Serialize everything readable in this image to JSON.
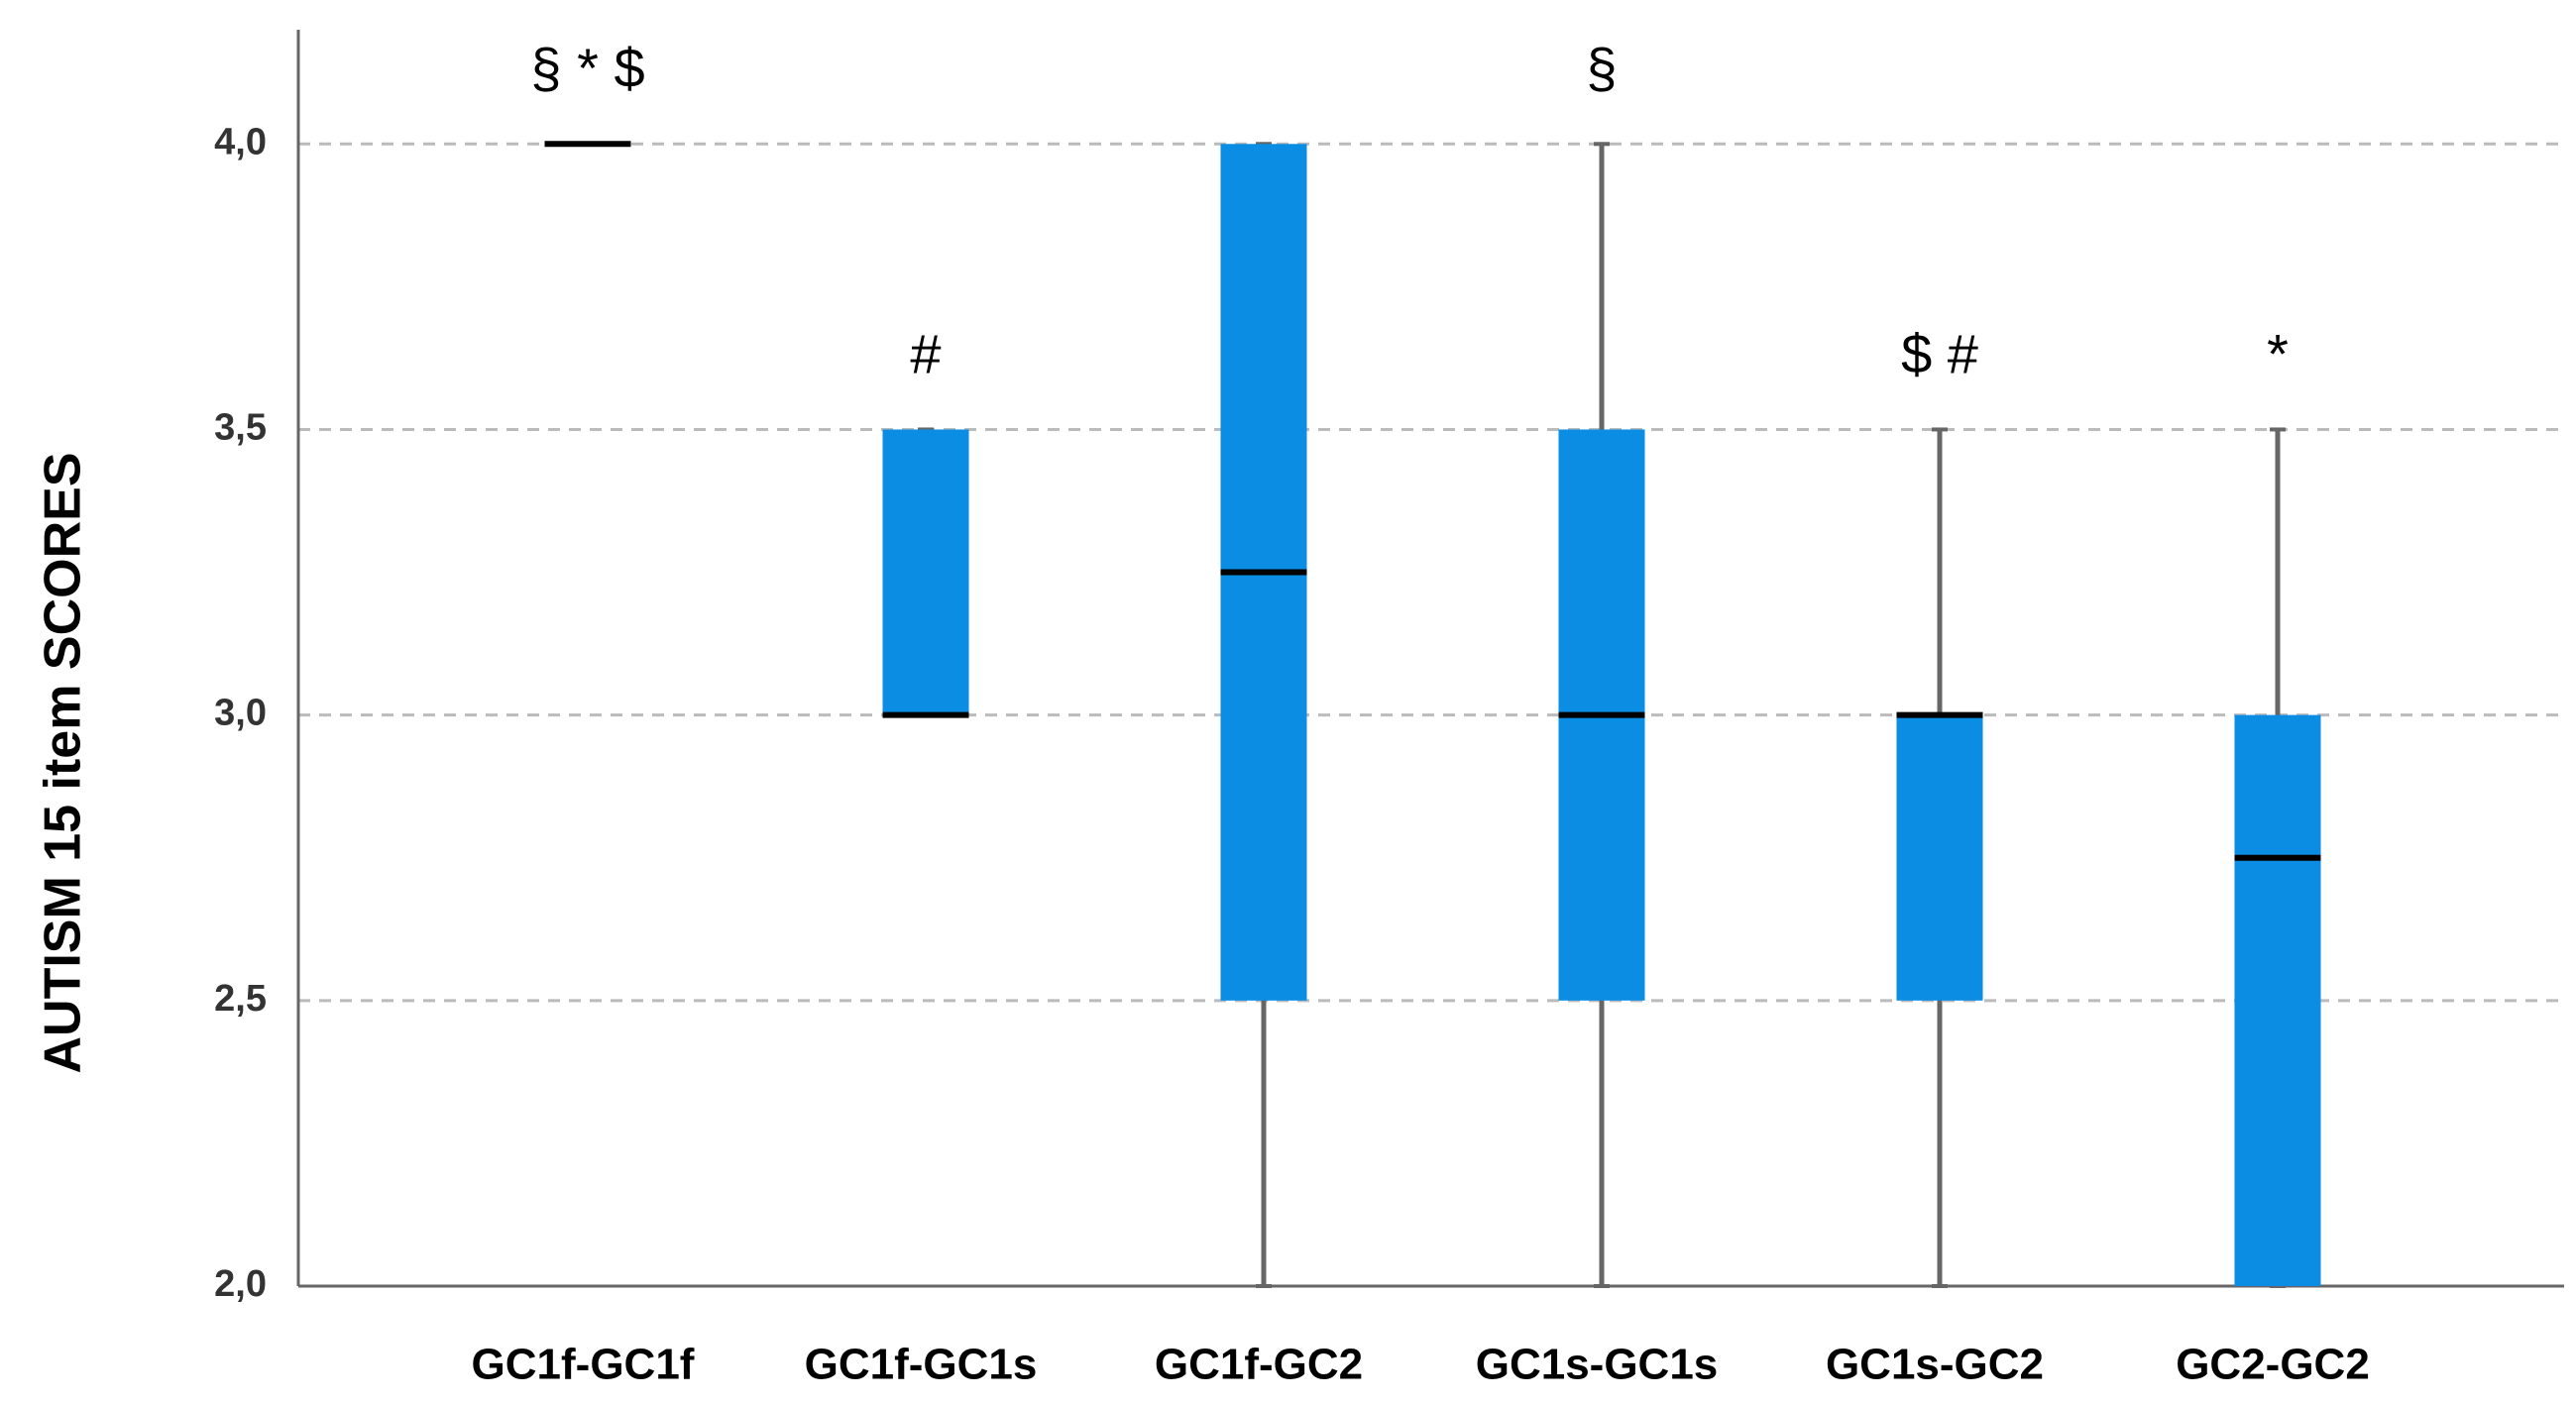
{
  "chart_data": {
    "type": "box",
    "y_label": "AUTISM 15 item SCORES",
    "categories": [
      "GC1f-GC1f",
      "GC1f-GC1s",
      "GC1f-GC2",
      "GC1s-GC1s",
      "GC1s-GC2",
      "GC2-GC2"
    ],
    "min": [
      4,
      3,
      2,
      2,
      2,
      2
    ],
    "q1": [
      4,
      3,
      2.5,
      2.5,
      2.5,
      2
    ],
    "median": [
      4,
      3,
      3.25,
      3,
      3,
      2.75
    ],
    "q3": [
      4,
      3.5,
      4,
      3.5,
      3,
      3
    ],
    "max": [
      4,
      3.5,
      4,
      4,
      3.5,
      3.5
    ],
    "annotations": [
      "§ * $",
      "#",
      null,
      "§",
      "$ #",
      "*"
    ],
    "color": "#0a8de3",
    "ylim": [
      2,
      4.2
    ],
    "yticks": [
      {
        "value": 2,
        "label": "2,0"
      },
      {
        "value": 2.5,
        "label": "2,5"
      },
      {
        "value": 3,
        "label": "3,0"
      },
      {
        "value": 3.5,
        "label": "3,5"
      },
      {
        "value": 4,
        "label": "4,0"
      }
    ],
    "grid": true
  }
}
